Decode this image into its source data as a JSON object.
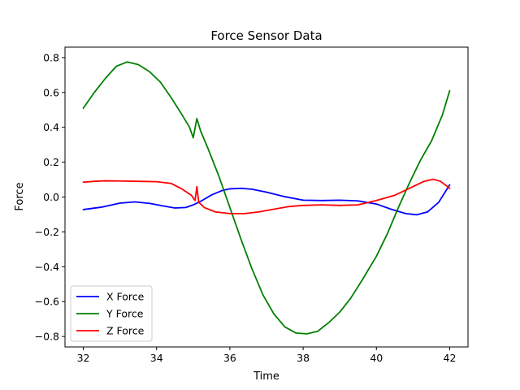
{
  "chart_data": {
    "type": "line",
    "title": "Force Sensor Data",
    "xlabel": "Time",
    "ylabel": "Force",
    "xlim": [
      31.5,
      42.5
    ],
    "ylim": [
      -0.86,
      0.86
    ],
    "xticks": [
      32,
      34,
      36,
      38,
      40,
      42
    ],
    "yticks": [
      -0.8,
      -0.6,
      -0.4,
      -0.2,
      0.0,
      0.2,
      0.4,
      0.6,
      0.8
    ],
    "grid": false,
    "legend_position": "lower-left",
    "series": [
      {
        "name": "X Force",
        "color": "#0000ff",
        "points": [
          [
            32.0,
            -0.072
          ],
          [
            32.5,
            -0.058
          ],
          [
            33.0,
            -0.035
          ],
          [
            33.4,
            -0.028
          ],
          [
            33.8,
            -0.036
          ],
          [
            34.2,
            -0.052
          ],
          [
            34.5,
            -0.063
          ],
          [
            34.8,
            -0.06
          ],
          [
            35.0,
            -0.045
          ],
          [
            35.2,
            -0.025
          ],
          [
            35.5,
            0.012
          ],
          [
            35.8,
            0.038
          ],
          [
            36.0,
            0.047
          ],
          [
            36.3,
            0.05
          ],
          [
            36.6,
            0.045
          ],
          [
            37.0,
            0.028
          ],
          [
            37.5,
            0.002
          ],
          [
            38.0,
            -0.018
          ],
          [
            38.5,
            -0.02
          ],
          [
            39.0,
            -0.018
          ],
          [
            39.5,
            -0.022
          ],
          [
            40.0,
            -0.04
          ],
          [
            40.4,
            -0.07
          ],
          [
            40.8,
            -0.095
          ],
          [
            41.1,
            -0.102
          ],
          [
            41.4,
            -0.085
          ],
          [
            41.7,
            -0.03
          ],
          [
            42.0,
            0.07
          ]
        ]
      },
      {
        "name": "Y Force",
        "color": "#008000",
        "points": [
          [
            32.0,
            0.51
          ],
          [
            32.3,
            0.6
          ],
          [
            32.6,
            0.68
          ],
          [
            32.9,
            0.75
          ],
          [
            33.2,
            0.775
          ],
          [
            33.5,
            0.76
          ],
          [
            33.8,
            0.72
          ],
          [
            34.1,
            0.66
          ],
          [
            34.4,
            0.57
          ],
          [
            34.7,
            0.47
          ],
          [
            34.9,
            0.4
          ],
          [
            35.0,
            0.34
          ],
          [
            35.1,
            0.45
          ],
          [
            35.2,
            0.38
          ],
          [
            35.4,
            0.28
          ],
          [
            35.7,
            0.12
          ],
          [
            36.0,
            -0.06
          ],
          [
            36.3,
            -0.24
          ],
          [
            36.6,
            -0.41
          ],
          [
            36.9,
            -0.56
          ],
          [
            37.2,
            -0.67
          ],
          [
            37.5,
            -0.745
          ],
          [
            37.8,
            -0.78
          ],
          [
            38.1,
            -0.785
          ],
          [
            38.4,
            -0.77
          ],
          [
            38.7,
            -0.72
          ],
          [
            39.0,
            -0.66
          ],
          [
            39.3,
            -0.58
          ],
          [
            39.6,
            -0.48
          ],
          [
            40.0,
            -0.34
          ],
          [
            40.3,
            -0.21
          ],
          [
            40.6,
            -0.06
          ],
          [
            40.9,
            0.08
          ],
          [
            41.2,
            0.21
          ],
          [
            41.5,
            0.32
          ],
          [
            41.8,
            0.47
          ],
          [
            42.0,
            0.61
          ]
        ]
      },
      {
        "name": "Z Force",
        "color": "#ff0000",
        "points": [
          [
            32.0,
            0.085
          ],
          [
            32.3,
            0.09
          ],
          [
            32.6,
            0.093
          ],
          [
            33.0,
            0.092
          ],
          [
            33.5,
            0.09
          ],
          [
            34.0,
            0.088
          ],
          [
            34.4,
            0.078
          ],
          [
            34.7,
            0.045
          ],
          [
            34.95,
            0.01
          ],
          [
            35.05,
            -0.02
          ],
          [
            35.1,
            0.06
          ],
          [
            35.15,
            -0.03
          ],
          [
            35.3,
            -0.06
          ],
          [
            35.6,
            -0.085
          ],
          [
            36.0,
            -0.095
          ],
          [
            36.4,
            -0.095
          ],
          [
            36.8,
            -0.085
          ],
          [
            37.2,
            -0.07
          ],
          [
            37.6,
            -0.055
          ],
          [
            38.0,
            -0.048
          ],
          [
            38.5,
            -0.045
          ],
          [
            39.0,
            -0.048
          ],
          [
            39.5,
            -0.045
          ],
          [
            40.0,
            -0.02
          ],
          [
            40.5,
            0.01
          ],
          [
            41.0,
            0.06
          ],
          [
            41.3,
            0.09
          ],
          [
            41.55,
            0.102
          ],
          [
            41.75,
            0.09
          ],
          [
            42.0,
            0.05
          ]
        ]
      }
    ]
  }
}
